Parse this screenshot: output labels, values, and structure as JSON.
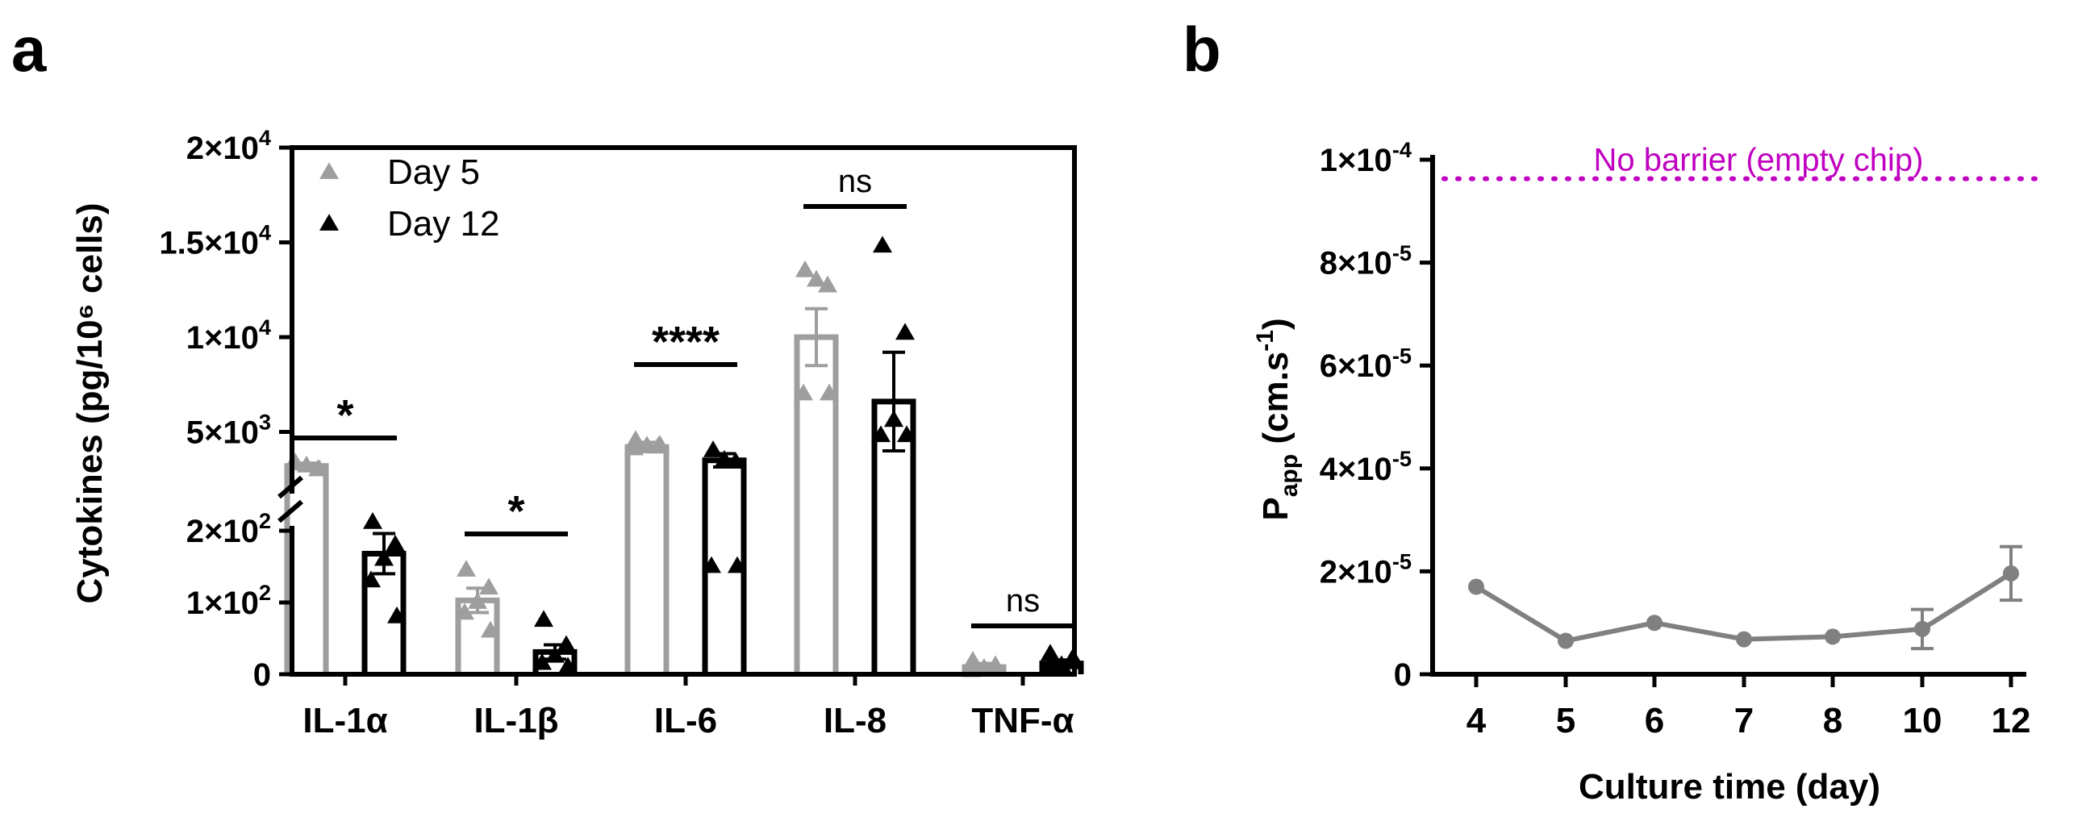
{
  "chart_data": [
    {
      "panel": "a",
      "type": "bar",
      "categories": [
        "IL-1α",
        "IL-1β",
        "IL-6",
        "IL-8",
        "TNF-α"
      ],
      "ylabel": "Cytokines (pg/10⁶ cells)",
      "axis_break": true,
      "lower_segment": {
        "ylim": [
          0,
          200
        ],
        "ticks": [
          {
            "value": 0,
            "base": "0",
            "exp": ""
          },
          {
            "value": 100,
            "base": "1×10",
            "exp": "2"
          },
          {
            "value": 200,
            "base": "2×10",
            "exp": "2"
          }
        ]
      },
      "upper_segment": {
        "ylim": [
          2000,
          20000
        ],
        "ticks": [
          {
            "value": 5000,
            "base": "5×10",
            "exp": "3"
          },
          {
            "value": 10000,
            "base": "1×10",
            "exp": "4"
          },
          {
            "value": 15000,
            "base": "1.5×10",
            "exp": "4"
          },
          {
            "value": 20000,
            "base": "2×10",
            "exp": "4"
          }
        ]
      },
      "legend": {
        "placement": "top-left"
      },
      "series": [
        {
          "name": "Day 5",
          "color": "#9e9e9e",
          "values": [
            3200,
            103,
            4200,
            10000,
            10
          ],
          "errors": [
            150,
            17,
            250,
            1500,
            5
          ],
          "points": [
            [
              3350,
              3000,
              3200,
              3350,
              3000
            ],
            [
              145,
              120,
              100,
              85,
              60
            ],
            [
              4550,
              4200,
              4250,
              4100,
              4300
            ],
            [
              13500,
              12700,
              13000,
              7000,
              7000
            ],
            [
              18,
              12,
              8,
              5,
              6
            ]
          ]
        },
        {
          "name": "Day 12",
          "color": "#000000",
          "values": [
            168,
            31,
            3500,
            6600,
            15
          ],
          "errors": [
            28,
            10,
            350,
            2600,
            5
          ],
          "points": [
            [
              220,
              180,
              160,
              130,
              80
            ],
            [
              75,
              40,
              25,
              15,
              10
            ],
            [
              4000,
              3400,
              3500,
              150,
              150
            ],
            [
              14800,
              10200,
              5600,
              4800,
              4800
            ],
            [
              28,
              22,
              12,
              8,
              16
            ]
          ]
        }
      ],
      "significance": [
        {
          "category": "IL-1α",
          "label": "*"
        },
        {
          "category": "IL-1β",
          "label": "*"
        },
        {
          "category": "IL-6",
          "label": "****"
        },
        {
          "category": "IL-8",
          "label": "ns"
        },
        {
          "category": "TNF-α",
          "label": "ns"
        }
      ]
    },
    {
      "panel": "b",
      "type": "line",
      "xlabel": "Culture time (day)",
      "ylabel": "Papp (cm.s-1)",
      "ylabel_parts": {
        "main": "P",
        "sub": "app",
        "rest": " (cm.s",
        "sup": "-1",
        "close": ")"
      },
      "x": [
        "4",
        "5",
        "6",
        "7",
        "8",
        "10",
        "12"
      ],
      "ylim": [
        0,
        0.0001
      ],
      "yticks": [
        {
          "value": 0,
          "base": "0",
          "exp": ""
        },
        {
          "value": 2e-05,
          "base": "2×10",
          "exp": "-5"
        },
        {
          "value": 4e-05,
          "base": "4×10",
          "exp": "-5"
        },
        {
          "value": 6e-05,
          "base": "6×10",
          "exp": "-5"
        },
        {
          "value": 8e-05,
          "base": "8×10",
          "exp": "-5"
        },
        {
          "value": 0.0001,
          "base": "1×10",
          "exp": "-4"
        }
      ],
      "series": [
        {
          "color": "#808080",
          "values": [
            1.7e-05,
            6.5e-06,
            1e-05,
            6.8e-06,
            7.3e-06,
            8.8e-06,
            1.96e-05
          ],
          "errors": [
            0,
            0,
            0,
            0,
            0,
            3.8e-06,
            5.2e-06
          ]
        }
      ],
      "reference_line": {
        "value": 9.63e-05,
        "label": "No barrier (empty chip)",
        "color": "#c000c0",
        "style": "dotted"
      }
    }
  ],
  "panel_labels": {
    "a": "a",
    "b": "b"
  }
}
